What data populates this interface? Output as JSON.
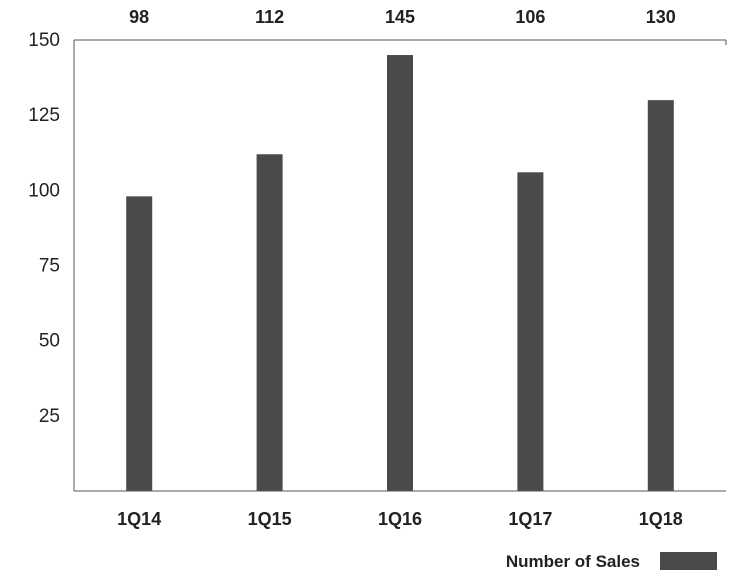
{
  "chart_data": {
    "type": "bar",
    "categories": [
      "1Q14",
      "1Q15",
      "1Q16",
      "1Q17",
      "1Q18"
    ],
    "series": [
      {
        "name": "Number of Sales",
        "values": [
          98,
          112,
          145,
          106,
          130
        ]
      }
    ],
    "data_labels": [
      "98",
      "112",
      "145",
      "106",
      "130"
    ],
    "yticks": [
      25,
      50,
      75,
      100,
      125,
      150
    ],
    "ylim": [
      0,
      150
    ],
    "grid": false,
    "legend": {
      "label": "Number of Sales",
      "position": "bottom-right"
    },
    "colors": {
      "bar": "#4a4a4c",
      "axis": "#555555",
      "text": "#222222"
    }
  }
}
